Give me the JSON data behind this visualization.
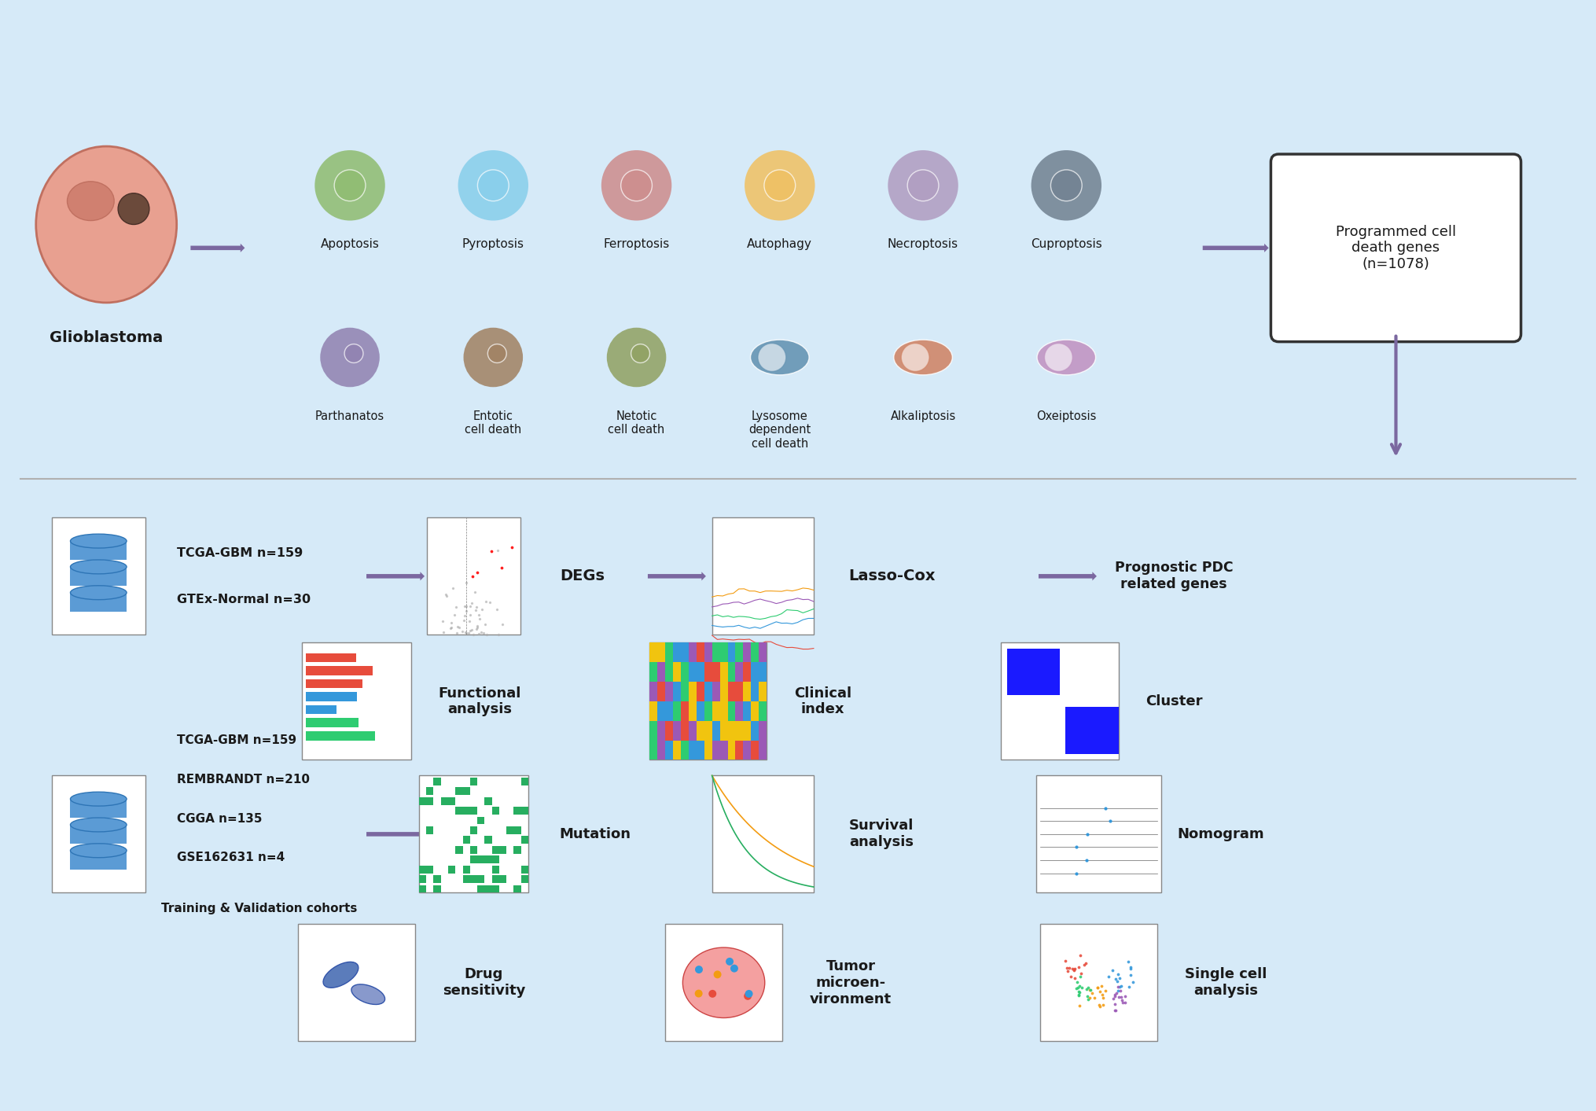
{
  "bg_color": "#d6eaf8",
  "fig_width": 20.3,
  "fig_height": 14.13,
  "row1_cell_types_top": [
    "Apoptosis",
    "Pyroptosis",
    "Ferroptosis",
    "Autophagy",
    "Necroptosis",
    "Cuproptosis"
  ],
  "row1_cell_types_bottom": [
    "Parthanatos",
    "Entotic\ncell death",
    "Netotic\ncell death",
    "Lysosome\ndependent\ncell death",
    "Alkaliptosis",
    "Oxeiptosis"
  ],
  "row2_left_text": "TCGA-GBM n=159\nGTEx-Normal n=30",
  "row2_labels": [
    "DEGs",
    "Lasso-Cox",
    "Prognostic PDC\nrelated genes"
  ],
  "row3_labels": [
    "Functional\nanalysis",
    "Clinical\nindex",
    "Cluster"
  ],
  "row4_left_text": "TCGA-GBM n=159\nREMBRANDT n=210\nCGGA n=135\nGSE162631 n=4\n\nTraining & Validation cohorts",
  "row4_labels": [
    "Mutation",
    "Survival\nanalysis",
    "Nomogram"
  ],
  "row5_labels": [
    "Drug\nsensitivity",
    "Tumor\nmicroen-\nvironment",
    "Single cell\nanalysis"
  ],
  "arrow_color": "#7b68a0",
  "box_color": "#ffffff",
  "divider_color": "#b0b0b0",
  "text_color": "#1a1a1a",
  "icon_colors": {
    "apoptosis": "#8fbc8f",
    "pyroptosis": "#87ceeb",
    "ferroptosis": "#cd8b8b",
    "autophagy": "#f0c060",
    "necroptosis": "#b09cc0",
    "cuproptosis": "#7090a0",
    "parthanatos": "#9080b0",
    "entotic": "#a08060",
    "netotic": "#90a060",
    "lysosome": "#6090b0",
    "alkaliptosis": "#d08060",
    "oxeiptosis": "#c090c0"
  }
}
